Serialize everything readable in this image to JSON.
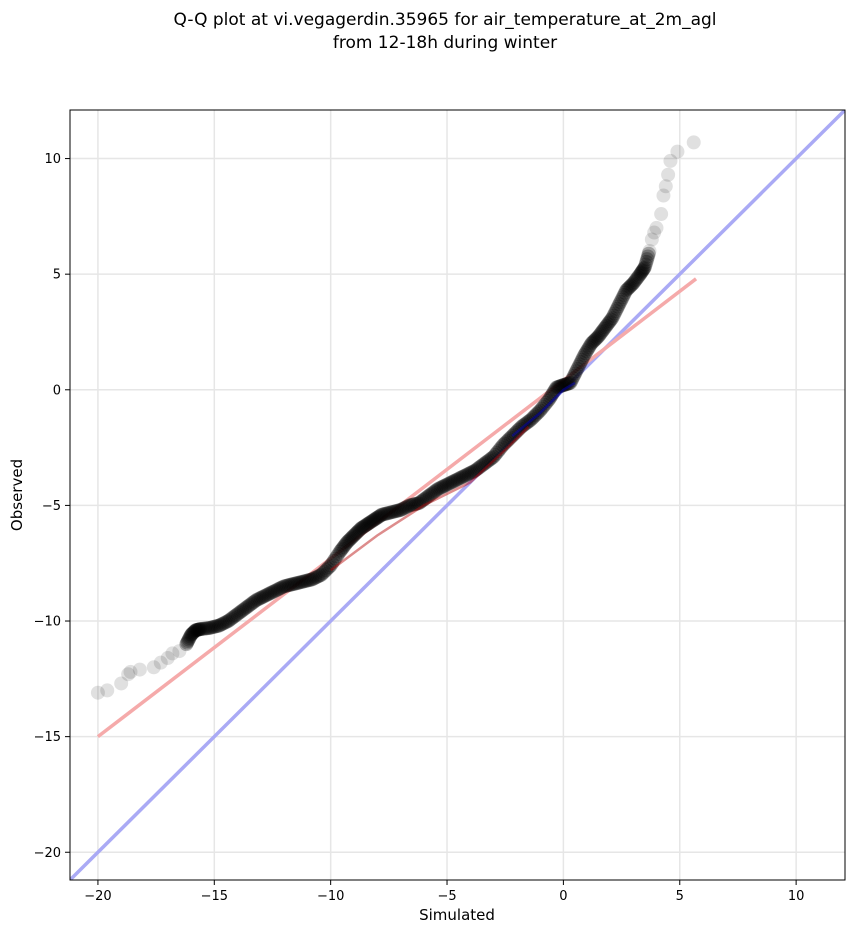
{
  "chart_data": {
    "type": "scatter",
    "title_lines": [
      "Q-Q plot at vi.vegagerdin.35965 for air_temperature_at_2m_agl",
      "from 12-18h during winter"
    ],
    "xlabel": "Simulated",
    "ylabel": "Observed",
    "xlim": [
      -21.2,
      12.1
    ],
    "ylim": [
      -21.2,
      12.1
    ],
    "x_ticks": [
      -20,
      -15,
      -10,
      -5,
      0,
      5,
      10
    ],
    "y_ticks": [
      -20,
      -15,
      -10,
      -5,
      0,
      5,
      10
    ],
    "x_tick_labels": [
      "−20",
      "−15",
      "−10",
      "−5",
      "0",
      "5",
      "10"
    ],
    "y_tick_labels": [
      "−20",
      "−15",
      "−10",
      "−5",
      "0",
      "5",
      "10"
    ],
    "grid": true,
    "quantile_points": {
      "color": "#000000",
      "x": [
        -20.0,
        -19.6,
        -19.0,
        -18.7,
        -18.6,
        -18.2,
        -17.6,
        -17.3,
        -17.0,
        -16.8,
        -16.5,
        -16.2,
        -16.0,
        -15.8,
        -15.6,
        -15.2,
        -14.8,
        -14.4,
        -14.0,
        -13.6,
        -13.2,
        -12.8,
        -12.4,
        -12.0,
        -11.6,
        -11.2,
        -10.8,
        -10.4,
        -10.0,
        -9.6,
        -9.3,
        -9.0,
        -8.7,
        -8.4,
        -8.1,
        -7.8,
        -7.4,
        -7.0,
        -6.6,
        -6.2,
        -5.8,
        -5.4,
        -5.0,
        -4.6,
        -4.2,
        -3.8,
        -3.4,
        -3.0,
        -2.6,
        -2.2,
        -1.8,
        -1.4,
        -1.0,
        -0.6,
        -0.3,
        0.0,
        0.3,
        0.6,
        0.9,
        1.2,
        1.5,
        1.8,
        2.1,
        2.4,
        2.7,
        3.0,
        3.3,
        3.5,
        3.7,
        3.8,
        3.9,
        4.0,
        4.2,
        4.3,
        4.4,
        4.5,
        4.6,
        4.9,
        5.6
      ],
      "y": [
        -13.1,
        -13.0,
        -12.7,
        -12.3,
        -12.2,
        -12.1,
        -12.0,
        -11.8,
        -11.6,
        -11.4,
        -11.3,
        -11.0,
        -10.6,
        -10.4,
        -10.35,
        -10.3,
        -10.2,
        -10.0,
        -9.7,
        -9.4,
        -9.1,
        -8.9,
        -8.7,
        -8.5,
        -8.4,
        -8.3,
        -8.2,
        -8.0,
        -7.6,
        -7.0,
        -6.6,
        -6.3,
        -6.0,
        -5.8,
        -5.6,
        -5.4,
        -5.3,
        -5.2,
        -5.0,
        -4.9,
        -4.6,
        -4.3,
        -4.1,
        -3.9,
        -3.7,
        -3.5,
        -3.2,
        -2.9,
        -2.4,
        -2.0,
        -1.6,
        -1.3,
        -0.9,
        -0.4,
        0.1,
        0.2,
        0.3,
        0.9,
        1.5,
        2.0,
        2.3,
        2.7,
        3.1,
        3.7,
        4.3,
        4.6,
        5.0,
        5.3,
        6.0,
        6.5,
        6.8,
        7.0,
        7.6,
        8.4,
        8.8,
        9.3,
        9.9,
        10.3,
        10.7
      ]
    },
    "reference_line": {
      "color": "#aaaaf5",
      "x": [
        -21.2,
        12.1
      ],
      "y": [
        -21.2,
        12.1
      ]
    },
    "fit_line": {
      "color": "#f5aaaa",
      "x": [
        -20.0,
        5.7
      ],
      "y": [
        -15.0,
        4.8
      ]
    },
    "overlay_blue": {
      "color": "#0000cc",
      "x": [
        -2.2,
        -1.0,
        0.0,
        0.5
      ],
      "y": [
        -2.0,
        -1.0,
        0.0,
        0.3
      ]
    },
    "overlay_red": {
      "color": "#b40000",
      "x": [
        -10.0,
        -8.0,
        -6.0,
        -4.0,
        -2.5,
        -1.5
      ],
      "y": [
        -7.8,
        -6.3,
        -5.0,
        -4.0,
        -2.6,
        -1.6
      ]
    }
  }
}
